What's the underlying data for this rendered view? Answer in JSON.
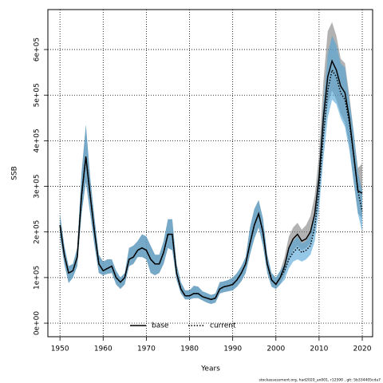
{
  "chart_data": {
    "type": "line",
    "ylabel": "SSB",
    "xlabel": "Years",
    "footer": "stockassessment.org, had2020_an001, r12590 , git: 5b334405cda7",
    "x": [
      1950,
      1951,
      1952,
      1953,
      1954,
      1955,
      1956,
      1957,
      1958,
      1959,
      1960,
      1961,
      1962,
      1963,
      1964,
      1965,
      1966,
      1967,
      1968,
      1969,
      1970,
      1971,
      1972,
      1973,
      1974,
      1975,
      1976,
      1977,
      1978,
      1979,
      1980,
      1981,
      1982,
      1983,
      1984,
      1985,
      1986,
      1987,
      1988,
      1989,
      1990,
      1991,
      1992,
      1993,
      1994,
      1995,
      1996,
      1997,
      1998,
      1999,
      2000,
      2001,
      2002,
      2003,
      2004,
      2005,
      2006,
      2007,
      2008,
      2009,
      2010,
      2011,
      2012,
      2013,
      2014,
      2015,
      2016,
      2017,
      2018,
      2019,
      2020
    ],
    "series": [
      {
        "name": "base",
        "color": "#000000",
        "linestyle": "solid",
        "band_color": "#7f7f7f",
        "values": [
          215000,
          150000,
          110000,
          115000,
          145000,
          280000,
          365000,
          280000,
          200000,
          130000,
          115000,
          120000,
          125000,
          100000,
          90000,
          100000,
          140000,
          145000,
          160000,
          165000,
          160000,
          140000,
          130000,
          130000,
          155000,
          195000,
          195000,
          110000,
          75000,
          60000,
          60000,
          65000,
          65000,
          58000,
          55000,
          52000,
          55000,
          75000,
          80000,
          82000,
          85000,
          95000,
          110000,
          130000,
          175000,
          215000,
          240000,
          200000,
          130000,
          95000,
          85000,
          100000,
          125000,
          165000,
          185000,
          195000,
          180000,
          185000,
          200000,
          240000,
          320000,
          450000,
          540000,
          575000,
          555000,
          520000,
          505000,
          450000,
          370000,
          290000,
          285000
        ],
        "lower": [
          190000,
          130000,
          88000,
          100000,
          125000,
          240000,
          310000,
          240000,
          170000,
          110000,
          105000,
          108000,
          110000,
          85000,
          75000,
          85000,
          125000,
          130000,
          145000,
          145000,
          140000,
          110000,
          105000,
          110000,
          130000,
          165000,
          160000,
          95000,
          65000,
          52000,
          52000,
          55000,
          55000,
          50000,
          45000,
          42000,
          45000,
          65000,
          68000,
          70000,
          72000,
          80000,
          92000,
          110000,
          150000,
          185000,
          210000,
          170000,
          110000,
          80000,
          75000,
          85000,
          105000,
          140000,
          160000,
          170000,
          160000,
          165000,
          175000,
          210000,
          280000,
          400000,
          480000,
          510000,
          490000,
          460000,
          440000,
          390000,
          310000,
          240000,
          230000
        ],
        "upper": [
          240000,
          170000,
          125000,
          130000,
          165000,
          330000,
          435000,
          320000,
          230000,
          150000,
          135000,
          140000,
          140000,
          115000,
          100000,
          110000,
          165000,
          170000,
          180000,
          195000,
          190000,
          170000,
          150000,
          150000,
          180000,
          228000,
          228000,
          130000,
          90000,
          72000,
          72000,
          82000,
          80000,
          70000,
          66000,
          62000,
          65000,
          90000,
          92000,
          95000,
          100000,
          110000,
          125000,
          145000,
          210000,
          250000,
          270000,
          230000,
          150000,
          110000,
          100000,
          115000,
          145000,
          190000,
          210000,
          220000,
          205000,
          215000,
          235000,
          280000,
          370000,
          530000,
          640000,
          660000,
          630000,
          580000,
          570000,
          500000,
          420000,
          340000,
          350000
        ]
      },
      {
        "name": "current",
        "color": "#000000",
        "linestyle": "dotted",
        "band_color": "#4fa3d6",
        "values": [
          215000,
          150000,
          110000,
          115000,
          145000,
          280000,
          365000,
          280000,
          200000,
          130000,
          115000,
          120000,
          125000,
          100000,
          90000,
          100000,
          140000,
          145000,
          160000,
          165000,
          160000,
          140000,
          130000,
          130000,
          155000,
          195000,
          195000,
          110000,
          75000,
          60000,
          60000,
          65000,
          65000,
          58000,
          55000,
          52000,
          55000,
          75000,
          80000,
          82000,
          85000,
          95000,
          110000,
          130000,
          175000,
          215000,
          240000,
          200000,
          130000,
          95000,
          85000,
          100000,
          115000,
          140000,
          155000,
          165000,
          155000,
          160000,
          170000,
          210000,
          290000,
          410000,
          510000,
          555000,
          540000,
          505000,
          490000,
          440000,
          370000,
          290000,
          245000
        ],
        "lower": [
          190000,
          130000,
          88000,
          100000,
          125000,
          240000,
          310000,
          240000,
          170000,
          110000,
          105000,
          108000,
          110000,
          85000,
          75000,
          85000,
          125000,
          130000,
          145000,
          145000,
          140000,
          110000,
          105000,
          110000,
          130000,
          165000,
          160000,
          95000,
          65000,
          52000,
          52000,
          55000,
          55000,
          50000,
          45000,
          42000,
          45000,
          65000,
          68000,
          70000,
          72000,
          80000,
          92000,
          110000,
          150000,
          185000,
          210000,
          170000,
          110000,
          80000,
          75000,
          85000,
          95000,
          120000,
          135000,
          140000,
          135000,
          140000,
          150000,
          180000,
          250000,
          360000,
          450000,
          490000,
          480000,
          450000,
          430000,
          380000,
          310000,
          240000,
          200000
        ],
        "upper": [
          240000,
          170000,
          125000,
          130000,
          165000,
          330000,
          435000,
          320000,
          230000,
          150000,
          135000,
          140000,
          140000,
          115000,
          100000,
          110000,
          165000,
          170000,
          180000,
          195000,
          190000,
          170000,
          150000,
          150000,
          180000,
          228000,
          228000,
          130000,
          90000,
          72000,
          72000,
          82000,
          80000,
          70000,
          66000,
          62000,
          65000,
          90000,
          92000,
          95000,
          100000,
          110000,
          125000,
          145000,
          210000,
          250000,
          270000,
          230000,
          150000,
          110000,
          100000,
          115000,
          130000,
          165000,
          180000,
          190000,
          175000,
          180000,
          195000,
          245000,
          340000,
          480000,
          590000,
          630000,
          610000,
          570000,
          560000,
          490000,
          420000,
          330000,
          290000
        ]
      }
    ],
    "xlim": [
      1947.2,
      2022.4
    ],
    "xticks": [
      1950,
      1960,
      1970,
      1980,
      1990,
      2000,
      2010,
      2020
    ],
    "ylim": [
      -29700,
      687600
    ],
    "yticks": [
      {
        "value": 0,
        "label": "0e+00"
      },
      {
        "value": 100000,
        "label": "1e+05"
      },
      {
        "value": 200000,
        "label": "2e+05"
      },
      {
        "value": 300000,
        "label": "3e+05"
      },
      {
        "value": 400000,
        "label": "4e+05"
      },
      {
        "value": 500000,
        "label": "5e+05"
      },
      {
        "value": 600000,
        "label": "6e+05"
      }
    ],
    "grid": true,
    "legend": "bottom"
  }
}
